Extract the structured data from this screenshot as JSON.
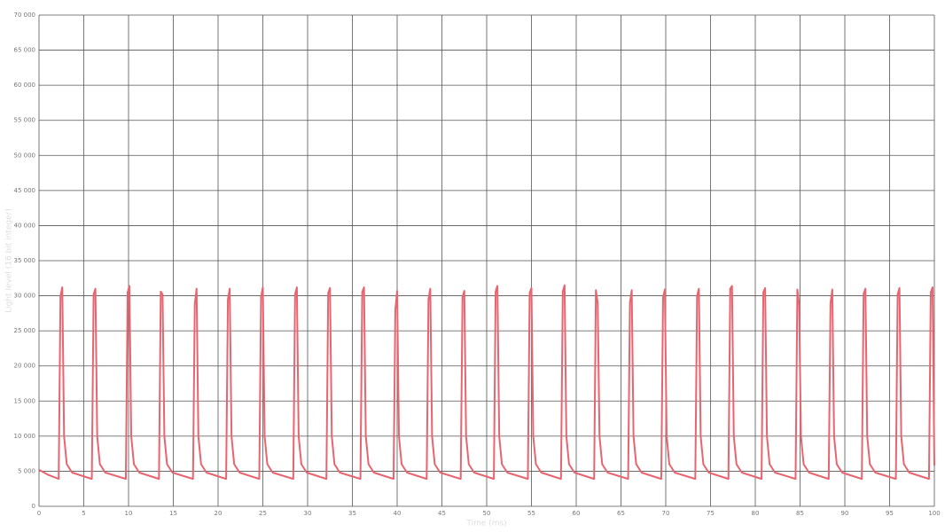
{
  "chart_data": {
    "type": "line",
    "x_label": "Time (ms)",
    "y_label": "Light level (16 bit integer)",
    "xlim": [
      0,
      100
    ],
    "ylim": [
      0,
      70000
    ],
    "xticks": [
      0,
      5,
      10,
      15,
      20,
      25,
      30,
      35,
      40,
      45,
      50,
      55,
      60,
      65,
      70,
      75,
      80,
      85,
      90,
      95,
      100
    ],
    "yticks": [
      0,
      {
        "value": 5000,
        "label": "5 000"
      },
      {
        "value": 10000,
        "label": "10 000"
      },
      {
        "value": 15000,
        "label": "15 000"
      },
      {
        "value": 20000,
        "label": "20 000"
      },
      {
        "value": 25000,
        "label": "25 000"
      },
      {
        "value": 30000,
        "label": "30 000"
      },
      {
        "value": 35000,
        "label": "35 000"
      },
      {
        "value": 40000,
        "label": "40 000"
      },
      {
        "value": 45000,
        "label": "45 000"
      },
      {
        "value": 50000,
        "label": "50 000"
      },
      {
        "value": 55000,
        "label": "55 000"
      },
      {
        "value": 60000,
        "label": "60 000"
      },
      {
        "value": 65000,
        "label": "65 000"
      },
      {
        "value": 70000,
        "label": "70 000"
      }
    ],
    "grid": true,
    "series": [
      {
        "color": "#e8646f",
        "x": [
          0,
          1,
          2.2,
          2.4,
          2.6,
          2.8,
          3.1,
          3.7,
          5.9,
          6.1,
          6.3,
          6.5,
          6.8,
          7.4,
          9.7,
          9.9,
          10.1,
          10.3,
          10.6,
          11.2,
          13.4,
          13.6,
          13.8,
          14,
          14.3,
          14.9,
          17.2,
          17.4,
          17.6,
          17.8,
          18.1,
          18.7,
          20.9,
          21.1,
          21.3,
          21.5,
          21.8,
          22.4,
          24.6,
          24.8,
          25,
          25.2,
          25.5,
          26.1,
          28.4,
          28.6,
          28.8,
          29,
          29.3,
          29.9,
          32.1,
          32.3,
          32.5,
          32.7,
          33,
          33.6,
          35.9,
          36.1,
          36.3,
          36.5,
          36.8,
          37.4,
          39.6,
          39.8,
          40,
          40.2,
          40.5,
          41.1,
          43.3,
          43.5,
          43.7,
          43.9,
          44.2,
          44.8,
          47.1,
          47.3,
          47.5,
          47.7,
          48,
          48.6,
          50.8,
          51,
          51.2,
          51.4,
          51.7,
          52.3,
          54.6,
          54.8,
          55,
          55.2,
          55.5,
          56.1,
          58.3,
          58.5,
          58.7,
          58.9,
          59.2,
          59.8,
          62,
          62.2,
          62.4,
          62.6,
          62.9,
          63.5,
          65.8,
          66,
          66.2,
          66.4,
          66.7,
          67.3,
          69.5,
          69.7,
          69.9,
          70.1,
          70.4,
          71,
          73.3,
          73.5,
          73.7,
          73.9,
          74.2,
          74.8,
          77,
          77.2,
          77.4,
          77.6,
          77.9,
          78.5,
          80.7,
          80.9,
          81.1,
          81.3,
          81.6,
          82.2,
          84.5,
          84.7,
          84.9,
          85.1,
          85.4,
          86,
          88.2,
          88.4,
          88.6,
          88.8,
          89.1,
          89.7,
          91.9,
          92.1,
          92.3,
          92.5,
          92.8,
          93.4,
          95.7,
          95.9,
          96.1,
          96.3,
          96.6,
          97.2,
          99.4,
          99.6,
          99.8,
          100
        ],
        "values": [
          5200,
          4500,
          3900,
          30000,
          31200,
          10000,
          6000,
          4800,
          3900,
          30200,
          31000,
          10000,
          6000,
          4800,
          3900,
          30500,
          31400,
          10000,
          6000,
          4800,
          3900,
          30600,
          30200,
          10000,
          6000,
          4800,
          3900,
          28800,
          31000,
          10000,
          6000,
          4800,
          3900,
          29500,
          31000,
          10000,
          6000,
          4800,
          3900,
          29800,
          31200,
          10000,
          6000,
          4800,
          3900,
          30200,
          31200,
          10000,
          6000,
          4800,
          3900,
          30400,
          31100,
          10000,
          6000,
          4800,
          3900,
          30500,
          31200,
          10000,
          6000,
          4800,
          3900,
          28000,
          30700,
          10000,
          6000,
          4800,
          3900,
          29500,
          31000,
          10000,
          6000,
          4800,
          3900,
          29800,
          30700,
          10000,
          6000,
          4800,
          3900,
          30600,
          31400,
          10000,
          6000,
          4800,
          3900,
          30400,
          31100,
          10000,
          6000,
          4800,
          3900,
          30600,
          31500,
          10000,
          6000,
          4800,
          3900,
          30800,
          29000,
          10000,
          6000,
          4800,
          3900,
          29000,
          30800,
          10000,
          6000,
          4800,
          3900,
          29800,
          30900,
          10000,
          6000,
          4800,
          3900,
          30000,
          31000,
          10000,
          6000,
          4800,
          3900,
          31000,
          31400,
          10000,
          6000,
          4800,
          3900,
          30500,
          31100,
          10000,
          6000,
          4800,
          3900,
          30900,
          28700,
          10000,
          6000,
          4800,
          3900,
          28900,
          30900,
          10000,
          6000,
          4800,
          3900,
          30300,
          31000,
          10000,
          6000,
          4800,
          3900,
          30200,
          31100,
          10000,
          6000,
          4800,
          3900,
          30500,
          31200,
          5800
        ]
      }
    ]
  }
}
